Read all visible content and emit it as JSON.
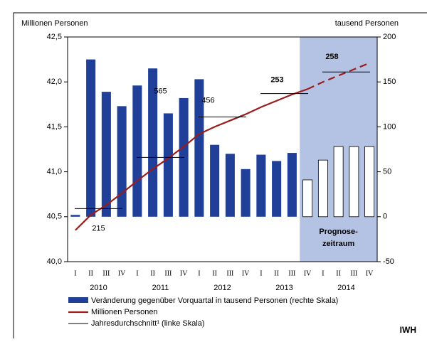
{
  "chart_data": {
    "type": "bar_line",
    "ylabel": "Millionen Personen",
    "y2label": "tausend Personen",
    "categories": [
      "I",
      "II",
      "III",
      "IV",
      "I",
      "II",
      "III",
      "IV",
      "I",
      "II",
      "III",
      "IV",
      "I",
      "II",
      "III",
      "IV",
      "I",
      "II",
      "III",
      "IV"
    ],
    "years": [
      "2010",
      "2011",
      "2012",
      "2013",
      "2014"
    ],
    "ylim": [
      40.0,
      42.5
    ],
    "yticks": [
      {
        "value": 40.0,
        "label": "40,0"
      },
      {
        "value": 40.5,
        "label": "40,5"
      },
      {
        "value": 41.0,
        "label": "41,0"
      },
      {
        "value": 41.5,
        "label": "41,5"
      },
      {
        "value": 42.0,
        "label": "42,0"
      },
      {
        "value": 42.5,
        "label": "42,5"
      }
    ],
    "y2lim": [
      -50,
      200
    ],
    "y2ticks": [
      -50,
      0,
      50,
      100,
      150,
      200
    ],
    "forecast_from": 15,
    "forecast_color": "#b4c3e3",
    "forecast_label": [
      "Prognose-",
      "zeitraum"
    ],
    "series": [
      {
        "name": "Veränderung gegenüber Vorquartal in tausend Personen (rechte Skala)",
        "type": "bar",
        "axis": "y2",
        "color": "#1f3f99",
        "values": [
          2,
          175,
          139,
          123,
          146,
          165,
          115,
          132,
          153,
          80,
          70,
          53,
          69,
          62,
          71,
          41,
          63,
          78,
          78,
          78
        ]
      },
      {
        "name": "Millionen Personen",
        "type": "line",
        "color": "#9b1c1c",
        "values": [
          40.35,
          40.52,
          40.63,
          40.76,
          40.9,
          41.03,
          41.15,
          41.28,
          41.42,
          41.5,
          41.57,
          41.64,
          41.72,
          41.79,
          41.86,
          41.92,
          42.0,
          42.07,
          42.14,
          42.21
        ]
      }
    ],
    "annual_average": {
      "name": "Jahresdurchschnitt¹ (linke Skala)",
      "color": "#000000",
      "values": [
        40.59,
        41.16,
        41.61,
        41.87,
        42.11
      ],
      "change": [
        215,
        565,
        456,
        253,
        258
      ],
      "change_bold": [
        false,
        false,
        false,
        true,
        true
      ]
    },
    "source": "IWH"
  }
}
